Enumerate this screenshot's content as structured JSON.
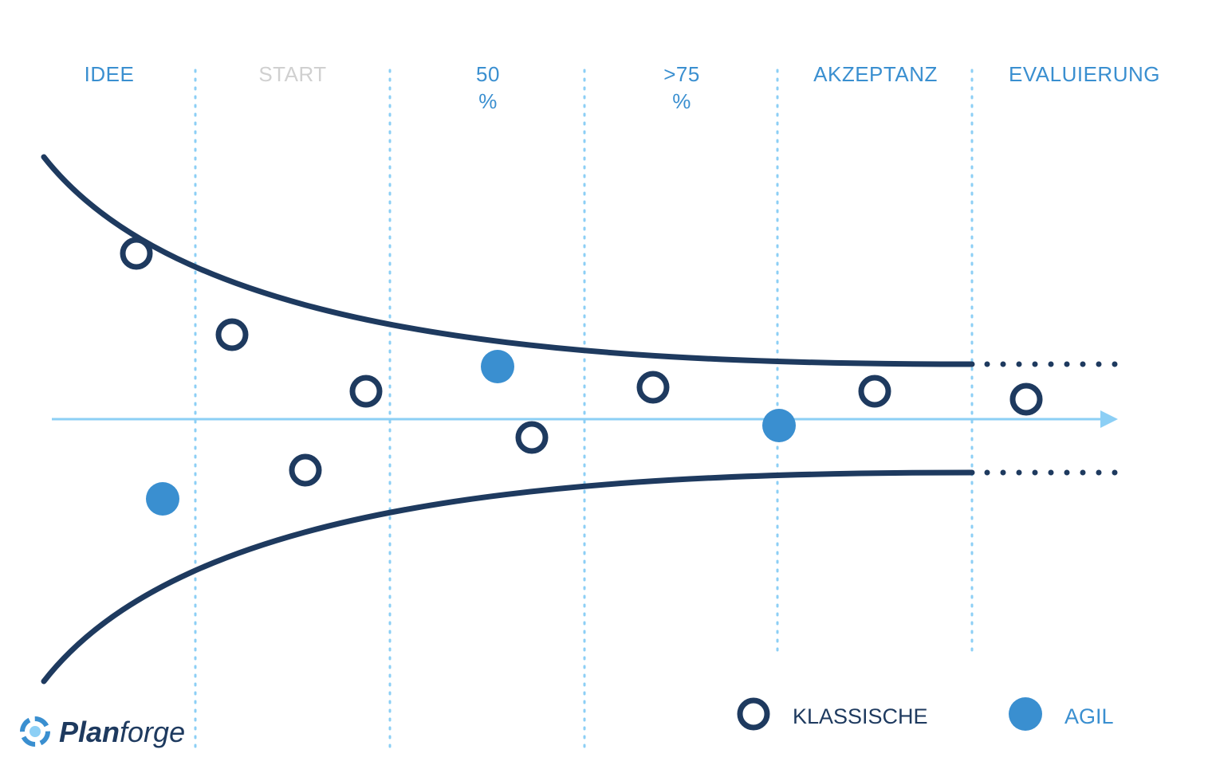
{
  "phases": [
    "IDEE",
    "START",
    "50 %",
    ">75 %",
    "AKZEPTANZ",
    "EVALUIERUNG"
  ],
  "legend": {
    "classic": "KLASSISCHE",
    "agile": "AGIL"
  },
  "logo": {
    "bold": "Plan",
    "light": "forge"
  }
}
